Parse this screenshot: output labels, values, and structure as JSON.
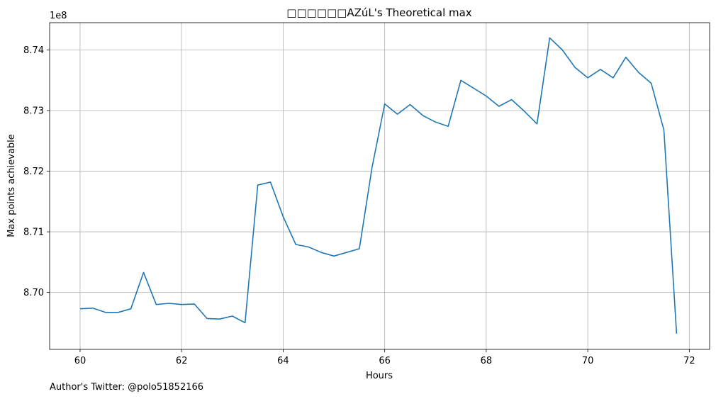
{
  "chart_data": {
    "type": "line",
    "title": "□□□□□□AZúL's Theoretical max",
    "xlabel": "Hours",
    "ylabel": "Max points achievable",
    "y_offset_label": "1e8",
    "xlim": [
      59.4,
      72.4
    ],
    "ylim": [
      8.6906,
      8.7445
    ],
    "x_ticks": [
      60,
      62,
      64,
      66,
      68,
      70,
      72
    ],
    "x_tick_labels": [
      "60",
      "62",
      "64",
      "66",
      "68",
      "70",
      "72"
    ],
    "y_ticks": [
      8.7,
      8.71,
      8.72,
      8.73,
      8.74
    ],
    "y_tick_labels": [
      "8.70",
      "8.71",
      "8.72",
      "8.73",
      "8.74"
    ],
    "grid": true,
    "line_color": "#1f77b4",
    "series": [
      {
        "x": [
          60.0,
          60.25,
          60.5,
          60.75,
          61.0,
          61.25,
          61.5,
          61.75,
          62.0,
          62.25,
          62.5,
          62.75,
          63.0,
          63.25,
          63.5,
          63.75,
          64.0,
          64.25,
          64.5,
          64.75,
          65.0,
          65.5,
          65.75,
          66.0,
          66.25,
          66.5,
          66.75,
          67.0,
          67.25,
          67.5,
          68.0,
          68.25,
          68.5,
          68.75,
          69.0,
          69.25,
          69.5,
          69.75,
          70.0,
          70.25,
          70.5,
          70.75,
          71.0,
          71.25,
          71.5,
          71.75
        ],
        "values": [
          8.6973,
          8.6974,
          8.6967,
          8.6967,
          8.6973,
          8.7033,
          8.698,
          8.6982,
          8.698,
          8.6981,
          8.6957,
          8.6956,
          8.6961,
          8.695,
          8.7177,
          8.7182,
          8.7125,
          8.7079,
          8.7075,
          8.7066,
          8.706,
          8.7072,
          8.7206,
          8.7311,
          8.7294,
          8.731,
          8.7292,
          8.7281,
          8.7274,
          8.735,
          8.7324,
          8.7307,
          8.7318,
          8.7299,
          8.7278,
          8.742,
          8.74,
          8.7371,
          8.7354,
          8.7368,
          8.7354,
          8.7388,
          8.7363,
          8.7345,
          8.7268,
          8.6932
        ]
      }
    ]
  },
  "footer": {
    "credit": "Author's Twitter: @polo51852166"
  }
}
